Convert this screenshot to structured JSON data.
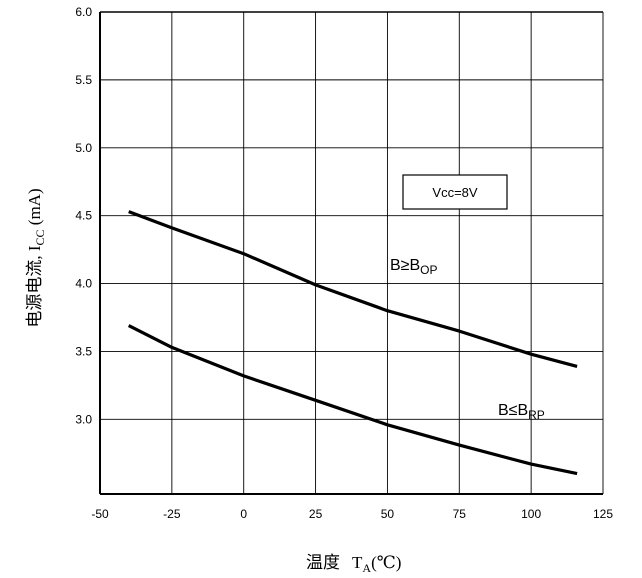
{
  "chart_data": {
    "type": "line",
    "xlabel": {
      "main": "温度",
      "symbol": "T",
      "sub": "A",
      "unit": "(℃)"
    },
    "ylabel": {
      "main": "电源电流, I",
      "sub": "CC",
      "unit": " (mA)"
    },
    "xlim": [
      -50,
      125
    ],
    "ylim": [
      2.45,
      6.0
    ],
    "xticks": [
      -50,
      -25,
      0,
      25,
      50,
      75,
      100,
      125
    ],
    "xtick_labels": [
      "-50",
      "-25",
      "0",
      "25",
      "50",
      "75",
      "100",
      "125"
    ],
    "yticks": [
      3.0,
      3.5,
      4.0,
      4.5,
      5.0,
      5.5,
      6.0
    ],
    "ytick_labels": [
      "3.0",
      "3.5",
      "4.0",
      "4.5",
      "5.0",
      "5.5",
      "6.0"
    ],
    "grid": true,
    "annotation": "Vcc=8V",
    "series": [
      {
        "name": {
          "main": "B≥B",
          "sub": "OP"
        },
        "x": [
          -40,
          -25,
          0,
          25,
          50,
          75,
          100,
          116
        ],
        "y": [
          4.53,
          4.41,
          4.22,
          3.99,
          3.8,
          3.65,
          3.48,
          3.39
        ]
      },
      {
        "name": {
          "main": "B≤B",
          "sub": "RP"
        },
        "x": [
          -40,
          -25,
          0,
          25,
          50,
          75,
          100,
          116
        ],
        "y": [
          3.69,
          3.53,
          3.32,
          3.14,
          2.96,
          2.81,
          2.67,
          2.6
        ]
      }
    ]
  }
}
